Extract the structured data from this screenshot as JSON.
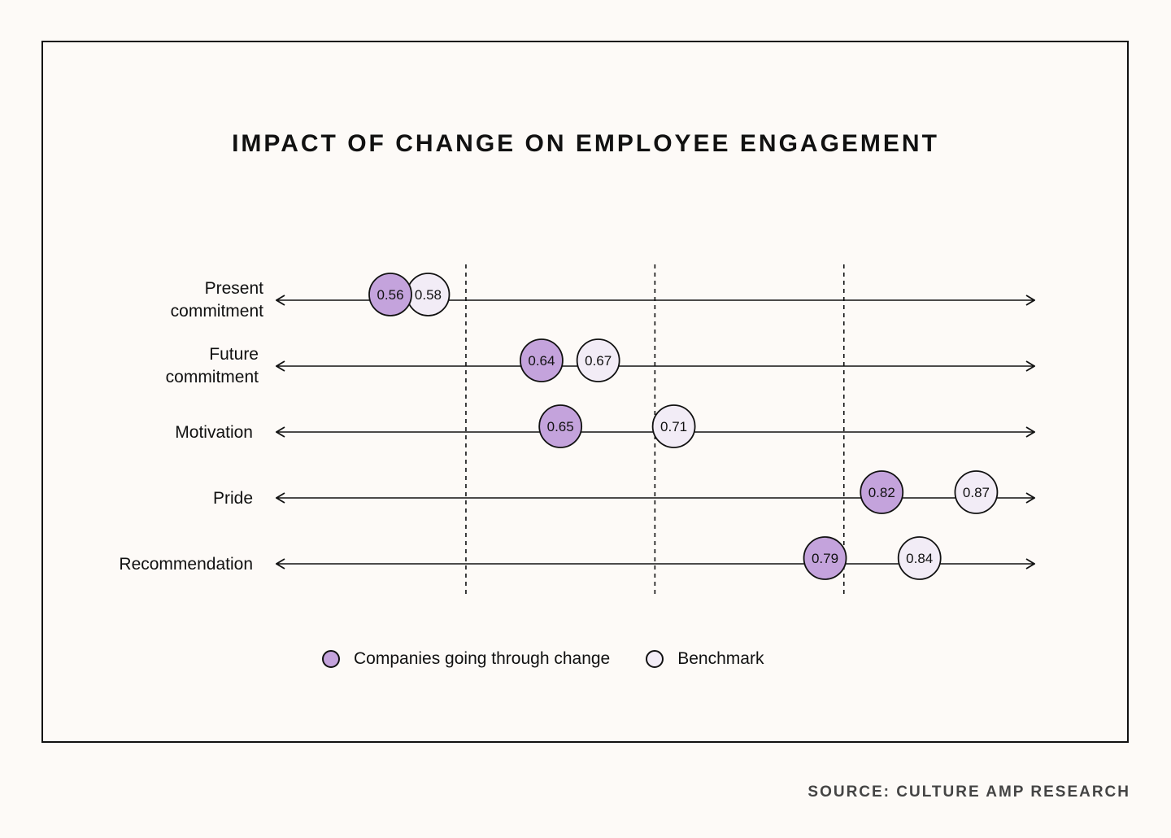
{
  "chart_data": {
    "type": "scatter",
    "title": "IMPACT OF CHANGE ON EMPLOYEE ENGAGEMENT",
    "categories": [
      [
        "Present",
        "commitment"
      ],
      [
        "Future",
        "commitment"
      ],
      [
        "Motivation"
      ],
      [
        "Pride"
      ],
      [
        "Recommendation"
      ]
    ],
    "series": [
      {
        "name": "Companies going through change",
        "color": "#c4a3dc",
        "values": [
          0.56,
          0.64,
          0.65,
          0.82,
          0.79
        ]
      },
      {
        "name": "Benchmark",
        "color": "#f2ecf6",
        "values": [
          0.58,
          0.67,
          0.71,
          0.87,
          0.84
        ]
      }
    ],
    "xlim": [
      0.52,
      0.88
    ],
    "reference_lines": [
      0.6,
      0.7,
      0.8
    ],
    "legend_position": "bottom",
    "source": "SOURCE: CULTURE AMP RESEARCH"
  }
}
